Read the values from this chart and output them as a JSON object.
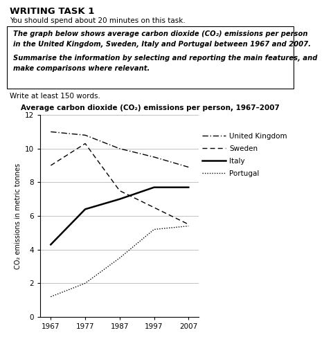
{
  "title": "Average carbon dioxide (CO₂) emissions per person, 1967–2007",
  "header_title": "WRITING TASK 1",
  "header_sub": "You should spend about 20 minutes on this task.",
  "box_line1": "The graph below shows average carbon dioxide (CO₂) emissions per person",
  "box_line2": "in the United Kingdom, Sweden, Italy and Portugal between 1967 and 2007.",
  "box_line3": "Summarise the information by selecting and reporting the main features, and",
  "box_line4": "make comparisons where relevant.",
  "footer_text": "Write at least 150 words.",
  "years": [
    1967,
    1977,
    1987,
    1997,
    2007
  ],
  "uk": [
    11.0,
    10.8,
    10.0,
    9.5,
    8.9
  ],
  "sweden": [
    9.0,
    10.3,
    7.5,
    6.5,
    5.5
  ],
  "italy": [
    4.3,
    6.4,
    7.0,
    7.7,
    7.7
  ],
  "portugal": [
    1.2,
    2.0,
    3.5,
    5.2,
    5.4
  ],
  "ylabel": "CO₂ emissions in metric tonnes",
  "ylim": [
    0,
    12
  ],
  "yticks": [
    0,
    2,
    4,
    6,
    8,
    10,
    12
  ],
  "xticks": [
    1967,
    1977,
    1987,
    1997,
    2007
  ],
  "bg_color": "#ffffff"
}
